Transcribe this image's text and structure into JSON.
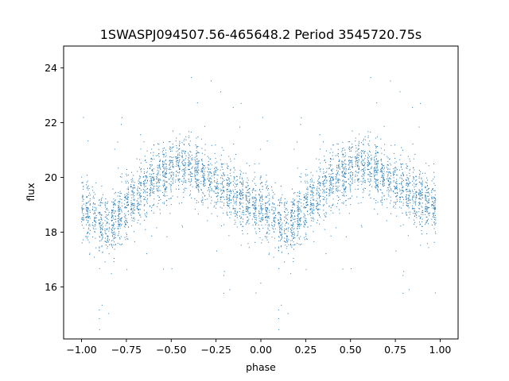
{
  "chart_data": {
    "type": "scatter",
    "title": "1SWASPJ094507.56-465648.2 Period 3545720.75s",
    "xlabel": "phase",
    "ylabel": "flux",
    "xlim": [
      -1.1,
      1.1
    ],
    "ylim": [
      14.1,
      24.8
    ],
    "xticks": [
      -1.0,
      -0.75,
      -0.5,
      -0.25,
      0.0,
      0.25,
      0.5,
      0.75,
      1.0
    ],
    "xtick_labels": [
      "−1.00",
      "−0.75",
      "−0.50",
      "−0.25",
      "0.00",
      "0.25",
      "0.50",
      "0.75",
      "1.00"
    ],
    "yticks": [
      16,
      18,
      20,
      22,
      24
    ],
    "ytick_labels": [
      "16",
      "18",
      "20",
      "22",
      "24"
    ],
    "grid": false,
    "legend": "none",
    "point_color": "#1f77b4",
    "phase_profile": {
      "description_of_trend": "flux vs phase, periodic with period 1 in phase",
      "phase": [
        0.0,
        0.05,
        0.1,
        0.15,
        0.2,
        0.25,
        0.3,
        0.35,
        0.4,
        0.45,
        0.5,
        0.55,
        0.6,
        0.65,
        0.7,
        0.75,
        0.8,
        0.85,
        0.9,
        0.95,
        1.0
      ],
      "median_flux": [
        18.9,
        18.6,
        18.3,
        18.2,
        18.5,
        18.9,
        19.3,
        19.6,
        19.9,
        20.1,
        20.3,
        20.5,
        20.4,
        20.2,
        20.0,
        19.8,
        19.6,
        19.4,
        19.2,
        19.0,
        18.9
      ],
      "spread": 1.3,
      "point_count_per_cycle": 2200
    }
  }
}
